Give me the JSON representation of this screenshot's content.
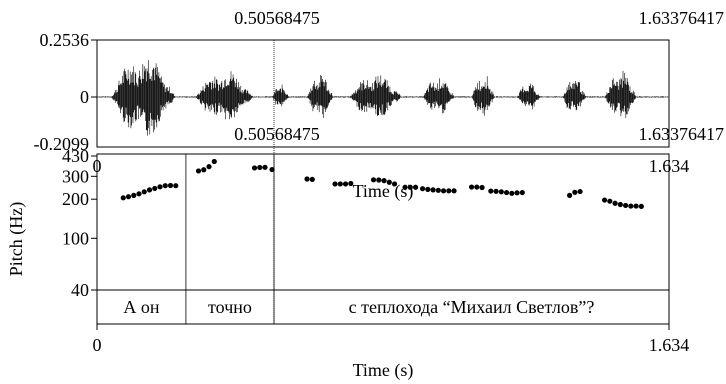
{
  "cursor": {
    "time": 0.50568475,
    "label_top": "0.50568475",
    "label_mid": "0.50568475"
  },
  "window_end": {
    "time": 1.63376417,
    "label_top": "1.63376417",
    "label_mid": "1.63376417"
  },
  "waveform": {
    "ymax_label": "0.2536",
    "zero_label": "0",
    "ymin_label": "-0.2099",
    "ylim": [
      -0.2099,
      0.2536
    ]
  },
  "chart_data": {
    "type": "scatter",
    "xlabel": "Time (s)",
    "ylabel": "Pitch (Hz)",
    "xlim": [
      0,
      1.634
    ],
    "ylim": [
      40,
      430
    ],
    "y_scale": "log",
    "x_tick_labels": [
      "0",
      "1.634"
    ],
    "y_tick_labels": [
      "430",
      "300",
      "200",
      "100",
      "40"
    ],
    "y_ticks": [
      430,
      300,
      200,
      100,
      40
    ],
    "points": [
      [
        0.075,
        205
      ],
      [
        0.09,
        209
      ],
      [
        0.105,
        214
      ],
      [
        0.12,
        220
      ],
      [
        0.135,
        228
      ],
      [
        0.15,
        236
      ],
      [
        0.165,
        242
      ],
      [
        0.18,
        249
      ],
      [
        0.195,
        254
      ],
      [
        0.21,
        255
      ],
      [
        0.225,
        254
      ],
      [
        0.29,
        330
      ],
      [
        0.305,
        337
      ],
      [
        0.32,
        356
      ],
      [
        0.335,
        390
      ],
      [
        0.45,
        348
      ],
      [
        0.465,
        351
      ],
      [
        0.48,
        352
      ],
      [
        0.5,
        338
      ],
      [
        0.6,
        286
      ],
      [
        0.615,
        284
      ],
      [
        0.68,
        262
      ],
      [
        0.695,
        262
      ],
      [
        0.71,
        262
      ],
      [
        0.725,
        264
      ],
      [
        0.79,
        282
      ],
      [
        0.805,
        281
      ],
      [
        0.82,
        278
      ],
      [
        0.835,
        270
      ],
      [
        0.85,
        262
      ],
      [
        0.88,
        247
      ],
      [
        0.895,
        247
      ],
      [
        0.91,
        247
      ],
      [
        0.93,
        241
      ],
      [
        0.945,
        238
      ],
      [
        0.96,
        236
      ],
      [
        0.975,
        234
      ],
      [
        0.99,
        232
      ],
      [
        1.005,
        232
      ],
      [
        1.02,
        232
      ],
      [
        1.07,
        248
      ],
      [
        1.085,
        248
      ],
      [
        1.1,
        246
      ],
      [
        1.125,
        231
      ],
      [
        1.14,
        230
      ],
      [
        1.155,
        228
      ],
      [
        1.17,
        225
      ],
      [
        1.185,
        222
      ],
      [
        1.2,
        224
      ],
      [
        1.215,
        225
      ],
      [
        1.35,
        214
      ],
      [
        1.365,
        226
      ],
      [
        1.38,
        229
      ],
      [
        1.45,
        197
      ],
      [
        1.465,
        193
      ],
      [
        1.48,
        186
      ],
      [
        1.495,
        182
      ],
      [
        1.51,
        179
      ],
      [
        1.525,
        177
      ],
      [
        1.54,
        177
      ],
      [
        1.555,
        176
      ]
    ]
  },
  "textgrid": {
    "intervals": [
      {
        "label": "А он",
        "start": 0.0,
        "end": 0.254
      },
      {
        "label": "точно",
        "start": 0.254,
        "end": 0.50568475
      },
      {
        "label": "с теплохода “Михаил Светлов”?",
        "start": 0.50568475,
        "end": 1.634
      }
    ]
  },
  "bottom_axis": {
    "xmin_label": "0",
    "xmax_label": "1.634",
    "title": "Time (s)"
  }
}
